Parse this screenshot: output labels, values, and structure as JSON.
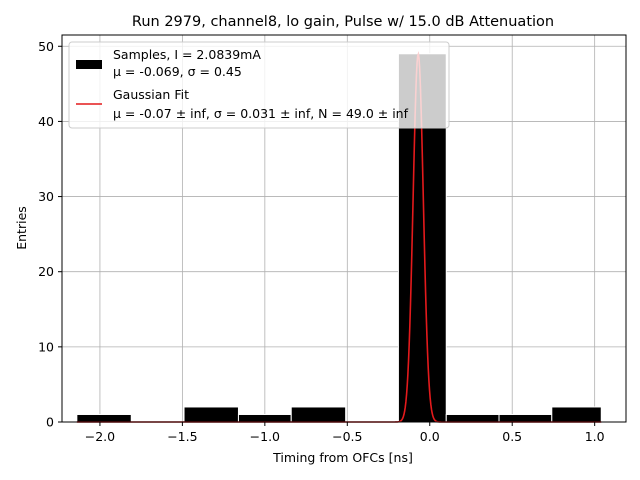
{
  "chart_data": {
    "type": "bar",
    "title": "Run 2979, channel8, lo gain, Pulse w/ 15.0 dB Attenuation",
    "xlabel": "Timing from OFCs [ns]",
    "ylabel": "Entries",
    "xlim": [
      -2.23,
      1.19
    ],
    "ylim": [
      0,
      51.5
    ],
    "grid": true,
    "xticks": [
      -2.0,
      -1.5,
      -1.0,
      -0.5,
      0.0,
      0.5,
      1.0
    ],
    "xtick_labels": [
      "−2.0",
      "−1.5",
      "−1.0",
      "−0.5",
      "0.0",
      "0.5",
      "1.0"
    ],
    "yticks": [
      0,
      10,
      20,
      30,
      40,
      50
    ],
    "ytick_labels": [
      "0",
      "10",
      "20",
      "30",
      "40",
      "50"
    ],
    "histogram": {
      "name": "Samples",
      "bins": [
        {
          "x0": -2.14,
          "x1": -1.81,
          "count": 1
        },
        {
          "x0": -1.81,
          "x1": -1.49,
          "count": 0
        },
        {
          "x0": -1.49,
          "x1": -1.16,
          "count": 2
        },
        {
          "x0": -1.16,
          "x1": -0.84,
          "count": 1
        },
        {
          "x0": -0.84,
          "x1": -0.51,
          "count": 2
        },
        {
          "x0": -0.51,
          "x1": -0.19,
          "count": 0
        },
        {
          "x0": -0.19,
          "x1": 0.1,
          "count": 49
        },
        {
          "x0": 0.1,
          "x1": 0.42,
          "count": 1
        },
        {
          "x0": 0.42,
          "x1": 0.74,
          "count": 1
        },
        {
          "x0": 0.74,
          "x1": 1.04,
          "count": 2
        }
      ]
    },
    "fit": {
      "name": "Gaussian Fit",
      "type": "line",
      "mu": -0.07,
      "sigma": 0.031,
      "N": 49.0,
      "x_range": [
        -2.14,
        1.04
      ]
    },
    "legend": {
      "placement": "top-left",
      "entries": [
        {
          "line1": "Samples, I = 2.0839mA",
          "line2": "μ = -0.069, σ = 0.45"
        },
        {
          "line1": "Gaussian Fit",
          "line2": "μ = -0.07 ± inf, σ = 0.031 ± inf, N = 49.0 ± inf"
        }
      ]
    },
    "colors": {
      "bar_fill": "#000000",
      "bar_edge": "#ffffff",
      "fit_line": "#e41a1c",
      "grid": "#b0b0b0",
      "axes": "#000000"
    }
  }
}
